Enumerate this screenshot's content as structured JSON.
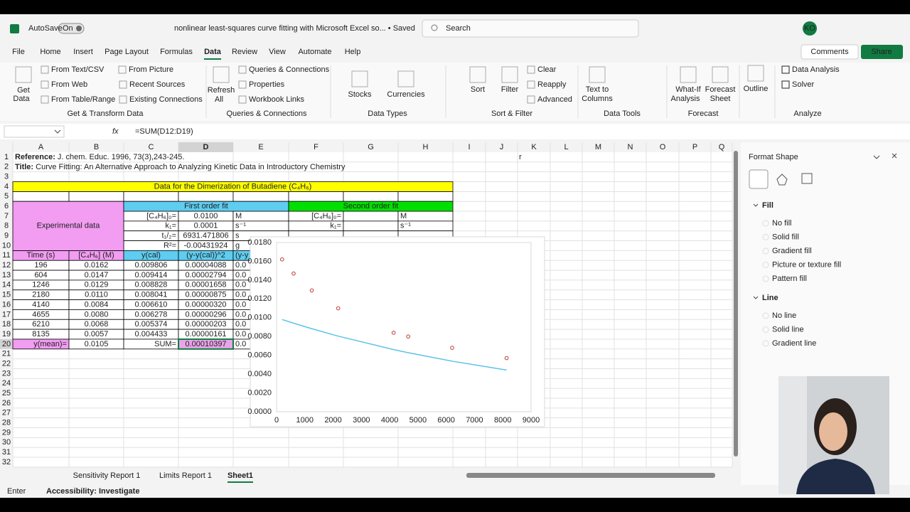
{
  "title_bar": {
    "autosave": "AutoSave",
    "toggle": "On",
    "document": "nonlinear least-squares curve fitting with Microsoft Excel so... • Saved",
    "search": "Search",
    "avatar": "KO"
  },
  "menu": {
    "tabs": [
      "File",
      "Home",
      "Insert",
      "Page Layout",
      "Formulas",
      "Data",
      "Review",
      "View",
      "Automate",
      "Help"
    ],
    "active_index": 5,
    "comments": "Comments",
    "share": "Share"
  },
  "ribbon": {
    "groups": [
      {
        "label": "Get & Transform Data",
        "items": [
          "Get",
          "Data",
          "From Text/CSV",
          "From Web",
          "From Table/Range",
          "From Picture",
          "Recent Sources",
          "Existing Connections"
        ]
      },
      {
        "label": "Queries & Connections",
        "items": [
          "Refresh",
          "All",
          "Queries & Connections",
          "Properties",
          "Workbook Links"
        ]
      },
      {
        "label": "Data Types",
        "items": [
          "Stocks",
          "Currencies"
        ]
      },
      {
        "label": "Sort & Filter",
        "items": [
          "Sort",
          "Filter",
          "Clear",
          "Reapply",
          "Advanced"
        ]
      },
      {
        "label": "Data Tools",
        "items": [
          "Text to",
          "Columns"
        ]
      },
      {
        "label": "Forecast",
        "items": [
          "What-If",
          "Analysis",
          "Forecast",
          "Sheet"
        ]
      },
      {
        "label": "Analyze",
        "items": [
          "Data Analysis",
          "Solver"
        ]
      }
    ],
    "outline": "Outline"
  },
  "formula_bar": {
    "fx": "fx",
    "formula": "=SUM(D12:D19)"
  },
  "sheet": {
    "columns": [
      "A",
      "B",
      "C",
      "D",
      "E",
      "F",
      "G",
      "H",
      "I",
      "J",
      "K",
      "L",
      "M",
      "N",
      "O",
      "P",
      "Q"
    ],
    "rows": [
      1,
      2,
      3,
      4,
      5,
      6,
      7,
      8,
      9,
      10,
      11,
      12,
      13,
      14,
      15,
      16,
      17,
      18,
      19,
      20,
      21,
      22,
      23,
      24,
      25,
      26,
      27,
      28,
      29,
      30,
      31,
      32
    ],
    "reference": {
      "label": "Reference:",
      "text": " J. chem. Educ. 1996, 73(3),243-245."
    },
    "title": {
      "label": "Title:",
      "text": " Curve Fitting: An Alternative Approach to Analyzing Kinetic Data in Introductory Chemistry"
    },
    "heading": "Data for the Dimerization of Butadiene (C₄H₆)",
    "experimental": "Experimental data",
    "first_order": "First order fit",
    "second_order": "Second order fit",
    "first_params": [
      [
        "[C₄H₆]₀=",
        "0.0100",
        "M"
      ],
      [
        "k₁=",
        "0.0001",
        "s⁻¹"
      ],
      [
        "t₁/₂=",
        "6931.471806",
        "s"
      ],
      [
        "R²=",
        "-0.00431924",
        "g"
      ]
    ],
    "second_params": [
      [
        "[C₄H₆]₀=",
        "M"
      ],
      [
        "k₁=",
        "s⁻¹"
      ]
    ],
    "headers": [
      "Time (s)",
      "[C₄H₆] (M)",
      "y(cal)",
      "(y-y(cal))^2",
      "(y-y"
    ],
    "data": [
      [
        "196",
        "0.0162",
        "0.009806",
        "0.00004088",
        "0.0"
      ],
      [
        "604",
        "0.0147",
        "0.009414",
        "0.00002794",
        "0.0"
      ],
      [
        "1246",
        "0.0129",
        "0.008828",
        "0.00001658",
        "0.0"
      ],
      [
        "2180",
        "0.0110",
        "0.008041",
        "0.00000875",
        "0.0"
      ],
      [
        "4140",
        "0.0084",
        "0.006610",
        "0.00000320",
        "0.0"
      ],
      [
        "4655",
        "0.0080",
        "0.006278",
        "0.00000296",
        "0.0"
      ],
      [
        "6210",
        "0.0068",
        "0.005374",
        "0.00000203",
        "0.0"
      ],
      [
        "8135",
        "0.0057",
        "0.004433",
        "0.00000161",
        "0.0"
      ]
    ],
    "footer": [
      "y(mean)=",
      "0.0105",
      "SUM=",
      "0.00010397",
      "0.0"
    ],
    "stray": "r",
    "tabs": [
      "Sensitivity Report 1",
      "Limits Report 1",
      "Sheet1"
    ],
    "active_tab": 2
  },
  "status": {
    "mode": "Enter",
    "accessibility": "Accessibility: Investigate"
  },
  "pane": {
    "title": "Format Shape",
    "fill": "Fill",
    "fill_options": [
      "No fill",
      "Solid fill",
      "Gradient fill",
      "Picture or texture fill",
      "Pattern fill"
    ],
    "line": "Line",
    "line_options": [
      "No line",
      "Solid line",
      "Gradient line"
    ]
  },
  "chart_data": {
    "type": "scatter",
    "xlim": [
      0,
      9000
    ],
    "xticks": [
      0,
      1000,
      2000,
      3000,
      4000,
      5000,
      6000,
      7000,
      8000,
      9000
    ],
    "ylim": [
      0,
      0.018
    ],
    "yticks": [
      {
        "value": 0,
        "label": "0.0000"
      },
      {
        "value": 0.002,
        "label": "0.0020"
      },
      {
        "value": 0.004,
        "label": "0.0040"
      },
      {
        "value": 0.006,
        "label": "0.0060"
      },
      {
        "value": 0.008,
        "label": "0.0080"
      },
      {
        "value": 0.01,
        "label": "0.0100"
      },
      {
        "value": 0.012,
        "label": "0.0120"
      },
      {
        "value": 0.014,
        "label": "0.0140"
      },
      {
        "value": 0.016,
        "label": "0.0160"
      },
      {
        "value": 0.018,
        "label": "0.0180"
      }
    ],
    "grid": false,
    "series": [
      {
        "mode": "markers",
        "color": "#c0392b",
        "x": [
          196,
          604,
          1246,
          2180,
          4140,
          4655,
          6210,
          8135
        ],
        "values": [
          0.0162,
          0.0147,
          0.0129,
          0.011,
          0.0084,
          0.008,
          0.0068,
          0.0057
        ]
      },
      {
        "mode": "line",
        "color": "#5bc3ea",
        "x": [
          196,
          604,
          1246,
          2180,
          4140,
          4655,
          6210,
          8135
        ],
        "values": [
          0.009806,
          0.009414,
          0.008828,
          0.008041,
          0.00661,
          0.006278,
          0.005374,
          0.004433
        ]
      }
    ]
  }
}
